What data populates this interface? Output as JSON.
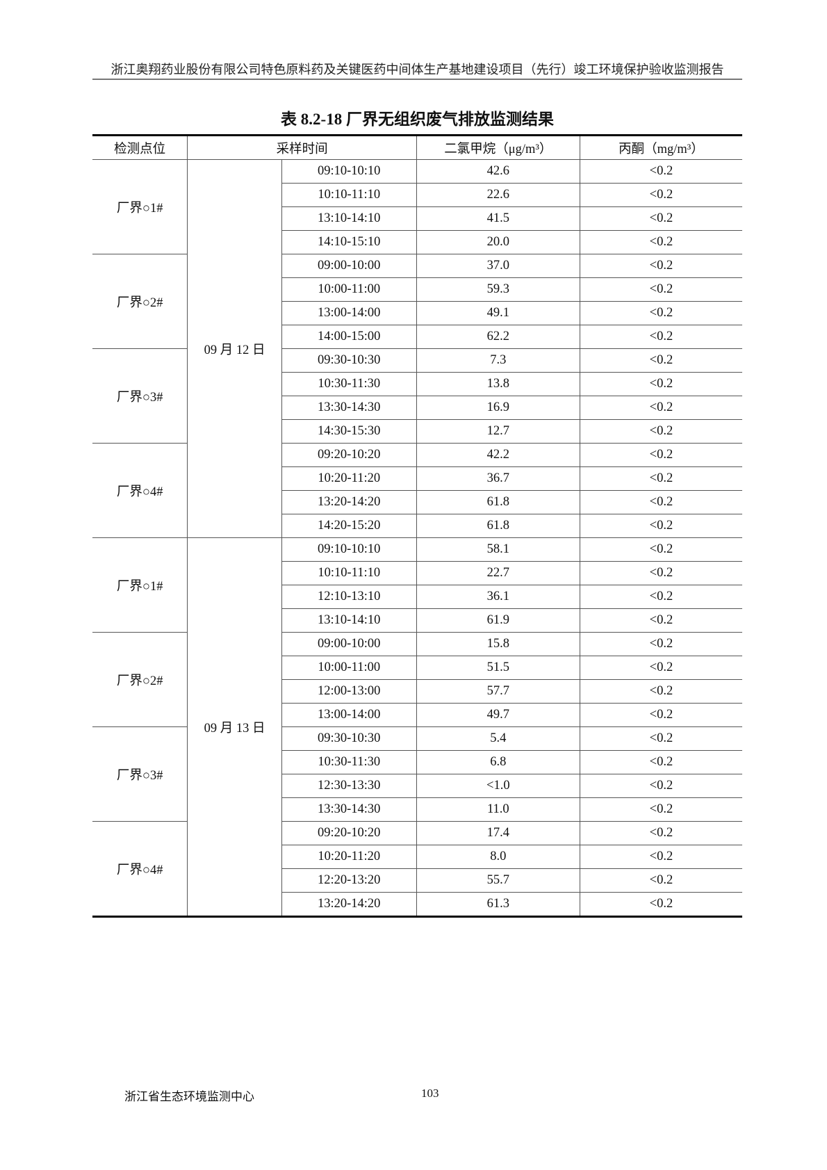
{
  "header": {
    "running_title": "浙江奥翔药业股份有限公司特色原料药及关键医药中间体生产基地建设项目（先行）竣工环境保护验收监测报告"
  },
  "table": {
    "title": "表 8.2-18  厂界无组织废气排放监测结果",
    "columns": [
      "检测点位",
      "采样时间",
      "二氯甲烷（μg/m³）",
      "丙酮（mg/m³）"
    ],
    "days": [
      {
        "date": "09 月 12 日",
        "points": [
          {
            "name": "厂界○1#",
            "rows": [
              [
                "09:10-10:10",
                "42.6",
                "<0.2"
              ],
              [
                "10:10-11:10",
                "22.6",
                "<0.2"
              ],
              [
                "13:10-14:10",
                "41.5",
                "<0.2"
              ],
              [
                "14:10-15:10",
                "20.0",
                "<0.2"
              ]
            ]
          },
          {
            "name": "厂界○2#",
            "rows": [
              [
                "09:00-10:00",
                "37.0",
                "<0.2"
              ],
              [
                "10:00-11:00",
                "59.3",
                "<0.2"
              ],
              [
                "13:00-14:00",
                "49.1",
                "<0.2"
              ],
              [
                "14:00-15:00",
                "62.2",
                "<0.2"
              ]
            ]
          },
          {
            "name": "厂界○3#",
            "rows": [
              [
                "09:30-10:30",
                "7.3",
                "<0.2"
              ],
              [
                "10:30-11:30",
                "13.8",
                "<0.2"
              ],
              [
                "13:30-14:30",
                "16.9",
                "<0.2"
              ],
              [
                "14:30-15:30",
                "12.7",
                "<0.2"
              ]
            ]
          },
          {
            "name": "厂界○4#",
            "rows": [
              [
                "09:20-10:20",
                "42.2",
                "<0.2"
              ],
              [
                "10:20-11:20",
                "36.7",
                "<0.2"
              ],
              [
                "13:20-14:20",
                "61.8",
                "<0.2"
              ],
              [
                "14:20-15:20",
                "61.8",
                "<0.2"
              ]
            ]
          }
        ]
      },
      {
        "date": "09 月 13 日",
        "points": [
          {
            "name": "厂界○1#",
            "rows": [
              [
                "09:10-10:10",
                "58.1",
                "<0.2"
              ],
              [
                "10:10-11:10",
                "22.7",
                "<0.2"
              ],
              [
                "12:10-13:10",
                "36.1",
                "<0.2"
              ],
              [
                "13:10-14:10",
                "61.9",
                "<0.2"
              ]
            ]
          },
          {
            "name": "厂界○2#",
            "rows": [
              [
                "09:00-10:00",
                "15.8",
                "<0.2"
              ],
              [
                "10:00-11:00",
                "51.5",
                "<0.2"
              ],
              [
                "12:00-13:00",
                "57.7",
                "<0.2"
              ],
              [
                "13:00-14:00",
                "49.7",
                "<0.2"
              ]
            ]
          },
          {
            "name": "厂界○3#",
            "rows": [
              [
                "09:30-10:30",
                "5.4",
                "<0.2"
              ],
              [
                "10:30-11:30",
                "6.8",
                "<0.2"
              ],
              [
                "12:30-13:30",
                "<1.0",
                "<0.2"
              ],
              [
                "13:30-14:30",
                "11.0",
                "<0.2"
              ]
            ]
          },
          {
            "name": "厂界○4#",
            "rows": [
              [
                "09:20-10:20",
                "17.4",
                "<0.2"
              ],
              [
                "10:20-11:20",
                "8.0",
                "<0.2"
              ],
              [
                "12:20-13:20",
                "55.7",
                "<0.2"
              ],
              [
                "13:20-14:20",
                "61.3",
                "<0.2"
              ]
            ]
          }
        ]
      }
    ]
  },
  "footer": {
    "organization": "浙江省生态环境监测中心",
    "page_number": "103"
  }
}
